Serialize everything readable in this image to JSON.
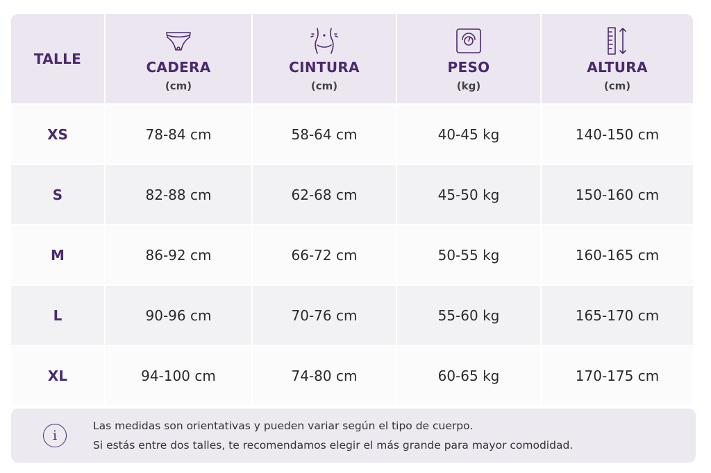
{
  "table": {
    "header": {
      "size_col": "TALLE",
      "columns": [
        {
          "name": "CADERA",
          "unit": "(cm)",
          "icon": "underwear-icon"
        },
        {
          "name": "CINTURA",
          "unit": "(cm)",
          "icon": "waist-icon"
        },
        {
          "name": "PESO",
          "unit": "(kg)",
          "icon": "scale-icon"
        },
        {
          "name": "ALTURA",
          "unit": "(cm)",
          "icon": "height-ruler-icon"
        }
      ]
    },
    "rows": [
      {
        "size": "XS",
        "cadera": "78-84 cm",
        "cintura": "58-64 cm",
        "peso": "40-45 kg",
        "altura": "140-150 cm"
      },
      {
        "size": "S",
        "cadera": "82-88 cm",
        "cintura": "62-68 cm",
        "peso": "45-50 kg",
        "altura": "150-160 cm"
      },
      {
        "size": "M",
        "cadera": "86-92 cm",
        "cintura": "66-72 cm",
        "peso": "50-55 kg",
        "altura": "160-165 cm"
      },
      {
        "size": "L",
        "cadera": "90-96 cm",
        "cintura": "70-76 cm",
        "peso": "55-60 kg",
        "altura": "165-170 cm"
      },
      {
        "size": "XL",
        "cadera": "94-100 cm",
        "cintura": "74-80 cm",
        "peso": "60-65 kg",
        "altura": "170-175 cm"
      }
    ]
  },
  "note": {
    "icon": "info-icon",
    "icon_glyph": "i",
    "line1": "Las medidas son orientativas y pueden variar según el tipo de cuerpo.",
    "line2": "Si estás entre dos talles, te recomendamos elegir el más grande para mayor comodidad."
  },
  "colors": {
    "accent": "#4a2a6d",
    "header_bg": "#ece6f0",
    "row_light": "#fbfbfc",
    "row_alt": "#f2f1f4",
    "note_bg": "#ece9f0"
  }
}
